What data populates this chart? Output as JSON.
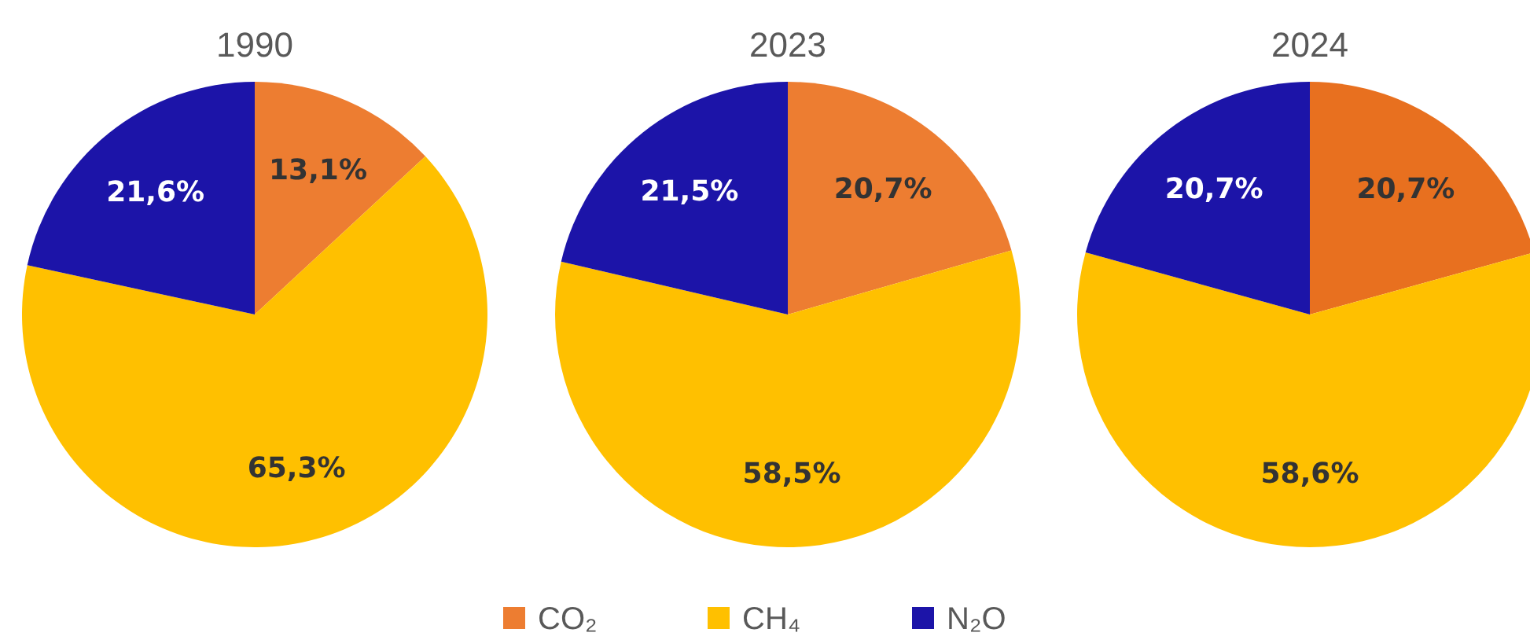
{
  "chart_data": [
    {
      "type": "pie",
      "title": "1990",
      "categories": [
        "CO₂",
        "CH₄",
        "N₂O"
      ],
      "values": [
        13.1,
        65.3,
        21.6
      ],
      "value_labels": [
        "13,1%",
        "65,3%",
        "21,6%"
      ],
      "colors": [
        "#ed7d31",
        "#ffc000",
        "#1c14a8"
      ],
      "legend": "bottom"
    },
    {
      "type": "pie",
      "title": "2023",
      "values": [
        20.7,
        58.5,
        21.5
      ],
      "value_labels": [
        "20,7%",
        "58,5%",
        "21,5%"
      ],
      "colors": [
        "#ed7d31",
        "#ffc000",
        "#1c14a8"
      ]
    },
    {
      "type": "pie",
      "title": "2024",
      "values": [
        20.7,
        58.6,
        20.7
      ],
      "value_labels": [
        "20,7%",
        "58,6%",
        "20,7%"
      ],
      "colors": [
        "#e8701f",
        "#ffc000",
        "#1c14a8"
      ]
    }
  ]
}
